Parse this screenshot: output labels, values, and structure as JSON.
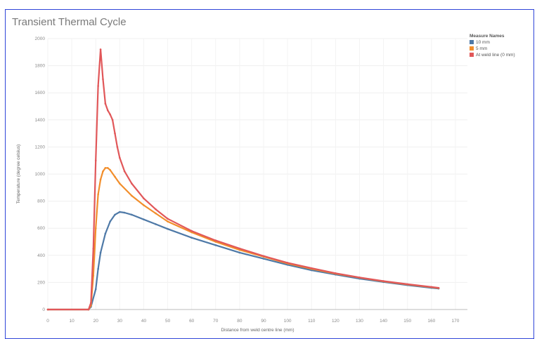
{
  "chart_data": {
    "type": "line",
    "title": "Transient Thermal Cycle",
    "xlabel": "Distance from weld centre line (mm)",
    "ylabel": "Temperature (degree celsius)",
    "xlim": [
      0,
      175
    ],
    "ylim": [
      0,
      2000
    ],
    "x_ticks": [
      0,
      10,
      20,
      30,
      40,
      50,
      60,
      70,
      80,
      90,
      100,
      110,
      120,
      130,
      140,
      150,
      160,
      170
    ],
    "y_ticks": [
      0,
      200,
      400,
      600,
      800,
      1000,
      1200,
      1400,
      1600,
      1800,
      2000
    ],
    "grid": true,
    "legend_title": "Measure Names",
    "legend_position": "top-right",
    "series": [
      {
        "name": "10 mm",
        "color": "#4e79a7",
        "points": [
          [
            0,
            0
          ],
          [
            17,
            0
          ],
          [
            18,
            20
          ],
          [
            20,
            150
          ],
          [
            21,
            300
          ],
          [
            22,
            420
          ],
          [
            24,
            560
          ],
          [
            26,
            650
          ],
          [
            28,
            700
          ],
          [
            30,
            720
          ],
          [
            32,
            715
          ],
          [
            35,
            700
          ],
          [
            40,
            665
          ],
          [
            45,
            630
          ],
          [
            50,
            595
          ],
          [
            60,
            530
          ],
          [
            70,
            475
          ],
          [
            80,
            420
          ],
          [
            90,
            375
          ],
          [
            100,
            330
          ],
          [
            110,
            290
          ],
          [
            120,
            258
          ],
          [
            130,
            228
          ],
          [
            140,
            203
          ],
          [
            150,
            180
          ],
          [
            160,
            160
          ],
          [
            163,
            155
          ]
        ]
      },
      {
        "name": "5 mm",
        "color": "#f28e2b",
        "points": [
          [
            0,
            0
          ],
          [
            17,
            0
          ],
          [
            18,
            30
          ],
          [
            19,
            250
          ],
          [
            20,
            600
          ],
          [
            21,
            850
          ],
          [
            22,
            960
          ],
          [
            23,
            1020
          ],
          [
            24,
            1045
          ],
          [
            25,
            1045
          ],
          [
            26,
            1030
          ],
          [
            28,
            980
          ],
          [
            30,
            930
          ],
          [
            35,
            840
          ],
          [
            40,
            770
          ],
          [
            45,
            710
          ],
          [
            50,
            650
          ],
          [
            60,
            570
          ],
          [
            70,
            500
          ],
          [
            80,
            440
          ],
          [
            90,
            390
          ],
          [
            100,
            340
          ],
          [
            110,
            300
          ],
          [
            120,
            265
          ],
          [
            130,
            235
          ],
          [
            140,
            208
          ],
          [
            150,
            185
          ],
          [
            160,
            165
          ],
          [
            163,
            158
          ]
        ]
      },
      {
        "name": "At weld line (0 mm)",
        "color": "#e15759",
        "points": [
          [
            0,
            0
          ],
          [
            17,
            0
          ],
          [
            18,
            50
          ],
          [
            19,
            450
          ],
          [
            20,
            1100
          ],
          [
            21,
            1650
          ],
          [
            22,
            1920
          ],
          [
            23,
            1700
          ],
          [
            24,
            1520
          ],
          [
            25,
            1470
          ],
          [
            26,
            1440
          ],
          [
            27,
            1400
          ],
          [
            28,
            1300
          ],
          [
            29,
            1200
          ],
          [
            30,
            1120
          ],
          [
            32,
            1020
          ],
          [
            35,
            930
          ],
          [
            40,
            820
          ],
          [
            45,
            740
          ],
          [
            50,
            670
          ],
          [
            60,
            580
          ],
          [
            70,
            510
          ],
          [
            80,
            450
          ],
          [
            90,
            395
          ],
          [
            100,
            345
          ],
          [
            110,
            305
          ],
          [
            120,
            268
          ],
          [
            130,
            237
          ],
          [
            140,
            210
          ],
          [
            150,
            187
          ],
          [
            160,
            167
          ],
          [
            163,
            160
          ]
        ]
      }
    ]
  }
}
